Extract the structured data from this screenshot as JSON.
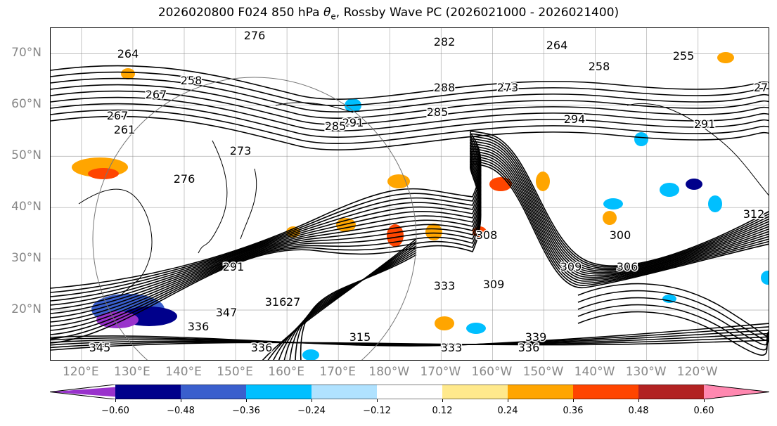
{
  "title": {
    "prefix": "2026020800 F024 850 hPa ",
    "theta": "θ",
    "theta_sub": "e",
    "suffix": ", Rossby Wave PC (2026021000 - 2026021400)"
  },
  "map": {
    "lat_labels": [
      "70°N",
      "60°N",
      "50°N",
      "40°N",
      "30°N",
      "20°N"
    ],
    "lat_values": [
      70,
      60,
      50,
      40,
      30,
      20
    ],
    "lat_range": [
      10,
      75
    ],
    "lon_labels": [
      "120°E",
      "130°E",
      "140°E",
      "150°E",
      "160°E",
      "170°E",
      "180°W",
      "170°W",
      "160°W",
      "150°W",
      "140°W",
      "130°W",
      "120°W"
    ],
    "lon_values": [
      120,
      130,
      140,
      150,
      160,
      170,
      180,
      190,
      200,
      210,
      220,
      230,
      240
    ],
    "lon_range": [
      114,
      254
    ],
    "contour_color": "#000000",
    "grid_color": "#888888",
    "contour_labels": [
      "276",
      "264",
      "267",
      "258",
      "261",
      "267",
      "273",
      "276",
      "282",
      "288",
      "285",
      "291",
      "294",
      "291",
      "285",
      "273",
      "291",
      "308",
      "300",
      "309",
      "306",
      "309",
      "315",
      "333",
      "336",
      "339",
      "333",
      "336",
      "345",
      "347",
      "327",
      "264",
      "258",
      "255",
      "27",
      "312",
      "316",
      "336"
    ]
  },
  "colorbar": {
    "ticks": [
      "−0.60",
      "−0.48",
      "−0.36",
      "−0.24",
      "−0.12",
      "0.12",
      "0.24",
      "0.36",
      "0.48",
      "0.60"
    ],
    "tick_values": [
      -0.6,
      -0.48,
      -0.36,
      -0.24,
      -0.12,
      0.12,
      0.24,
      0.36,
      0.48,
      0.6
    ],
    "range": [
      -0.72,
      0.72
    ],
    "colors": [
      "#9932cc",
      "#00008b",
      "#3a5fcd",
      "#00bfff",
      "#b0e2ff",
      "#ffffff",
      "#ffe98c",
      "#ffa500",
      "#ff4500",
      "#b22222",
      "#ff88b0"
    ]
  }
}
